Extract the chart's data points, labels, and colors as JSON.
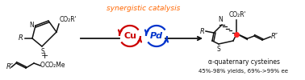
{
  "synergistic_text": "synergistic catalysis",
  "cu_text": "Cu",
  "pd_text": "Pd",
  "alpha_quat_text": "α-quaternary cysteines",
  "yield_text": "45%-98% yields, 69%->99% ee",
  "bg_color": "#ffffff",
  "orange_color": "#FF6600",
  "red_color": "#CC0000",
  "blue_color": "#0033CC",
  "black_color": "#111111",
  "red_dot_color": "#FF2222",
  "fig_w": 3.78,
  "fig_h": 1.0,
  "dpi": 100,
  "xlim": [
    0,
    378
  ],
  "ylim": [
    0,
    100
  ],
  "lw": 1.1
}
